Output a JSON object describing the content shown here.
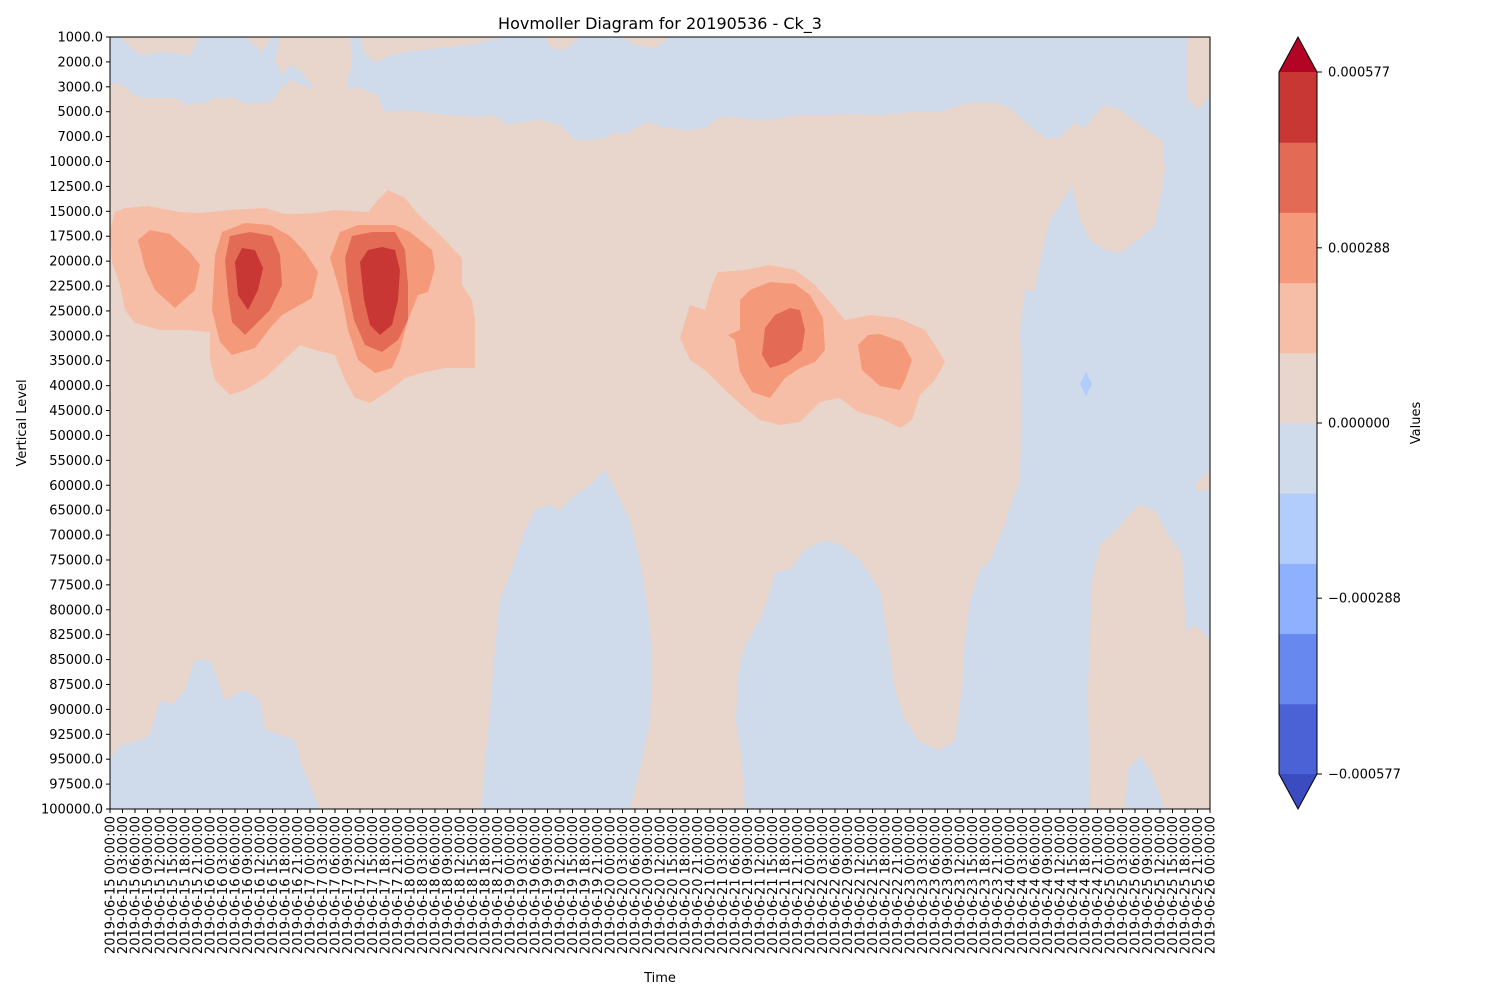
{
  "chart_data": {
    "type": "heatmap",
    "subtype": "filled-contour (Hovmoller)",
    "title": "Hovmoller Diagram for 20190536 - Ck_3",
    "xlabel": "Time",
    "ylabel": "Vertical Level",
    "colorbar_label": "Values",
    "colormap": "coolwarm",
    "y_levels": [
      "1000.0",
      "2000.0",
      "3000.0",
      "5000.0",
      "7000.0",
      "10000.0",
      "12500.0",
      "15000.0",
      "17500.0",
      "20000.0",
      "22500.0",
      "25000.0",
      "30000.0",
      "35000.0",
      "40000.0",
      "45000.0",
      "50000.0",
      "55000.0",
      "60000.0",
      "65000.0",
      "70000.0",
      "75000.0",
      "77500.0",
      "80000.0",
      "82500.0",
      "85000.0",
      "87500.0",
      "90000.0",
      "92500.0",
      "95000.0",
      "97500.0",
      "100000.0"
    ],
    "x_start": "2019-06-15 00:00:00",
    "x_step_hours": 3,
    "x_count": 89,
    "colorbar": {
      "tick_labels": [
        "0.000577",
        "0.000288",
        "0.000000",
        "−0.000288",
        "−0.000577"
      ],
      "tick_values": [
        0.000577,
        0.000288,
        0.0,
        -0.000288,
        -0.000577
      ],
      "levels": [
        -0.000673,
        -0.000577,
        -0.000481,
        -0.000385,
        -0.000288,
        -0.000192,
        -9.6e-05,
        0.0,
        9.6e-05,
        0.000192,
        0.000288,
        0.000385,
        0.000481,
        0.000577,
        0.000673
      ],
      "colors": [
        "#3b4cc0",
        "#4a62d6",
        "#6788ee",
        "#8eb0fe",
        "#b2ccfb",
        "#cfdaea",
        "#e8d6cc",
        "#f6bea6",
        "#f49a7b",
        "#e36b55",
        "#c93734",
        "#b40426"
      ],
      "extend": "both"
    },
    "features": [
      {
        "sign": "positive",
        "peak": 0.0006,
        "time": "2019-06-16 12:00",
        "level": "20000.0"
      },
      {
        "sign": "positive",
        "peak": 0.0006,
        "time": "2019-06-17 18:00",
        "level": "22500.0"
      },
      {
        "sign": "positive",
        "peak": 0.0004,
        "time": "2019-06-15 18:00",
        "level": "20000.0"
      },
      {
        "sign": "positive",
        "peak": 0.0005,
        "time": "2019-06-21 21:00",
        "level": "30000.0"
      },
      {
        "sign": "positive",
        "peak": 0.0004,
        "time": "2019-06-23 00:00",
        "level": "35000.0"
      },
      {
        "sign": "negative",
        "peak": -0.0002,
        "time": "2019-06-24 21:00",
        "level": "40000.0"
      }
    ]
  }
}
